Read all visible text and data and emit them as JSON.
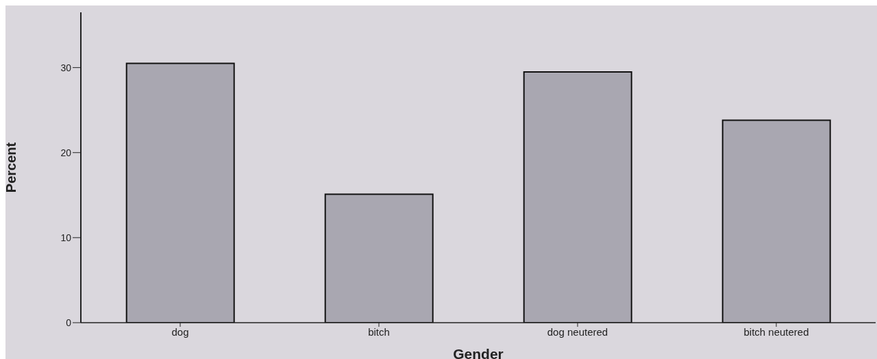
{
  "chart_data": {
    "type": "bar",
    "xlabel": "Gender",
    "ylabel": "Percent",
    "categories": [
      "dog",
      "bitch",
      "dog neutered",
      "bitch neutered"
    ],
    "values": [
      30.5,
      15.1,
      29.5,
      23.8
    ],
    "color": "#a9a7b1",
    "ylim": [
      0,
      36.5
    ],
    "yticks": [
      0,
      10,
      20,
      30
    ],
    "grid": false,
    "legend": false
  }
}
